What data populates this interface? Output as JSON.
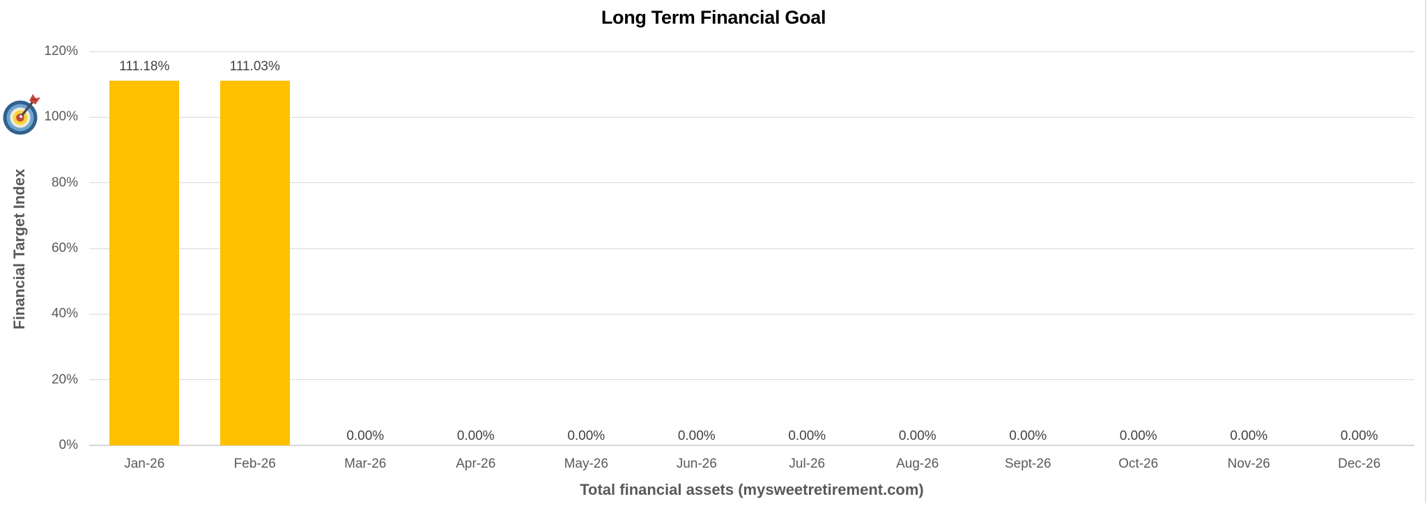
{
  "chart_data": {
    "type": "bar",
    "title": "Long Term Financial Goal",
    "xlabel": "Total financial assets (mysweetretirement.com)",
    "ylabel": "Financial Target Index",
    "categories": [
      "Jan-26",
      "Feb-26",
      "Mar-26",
      "Apr-26",
      "May-26",
      "Jun-26",
      "Jul-26",
      "Aug-26",
      "Sept-26",
      "Oct-26",
      "Nov-26",
      "Dec-26"
    ],
    "values": [
      111.18,
      111.03,
      0,
      0,
      0,
      0,
      0,
      0,
      0,
      0,
      0,
      0
    ],
    "data_labels": [
      "111.18%",
      "111.03%",
      "0.00%",
      "0.00%",
      "0.00%",
      "0.00%",
      "0.00%",
      "0.00%",
      "0.00%",
      "0.00%",
      "0.00%",
      "0.00%"
    ],
    "yticks": [
      {
        "value": 0,
        "label": "0%"
      },
      {
        "value": 20,
        "label": "20%"
      },
      {
        "value": 40,
        "label": "40%"
      },
      {
        "value": 60,
        "label": "60%"
      },
      {
        "value": 80,
        "label": "80%"
      },
      {
        "value": 100,
        "label": "100%"
      },
      {
        "value": 120,
        "label": "120%"
      }
    ],
    "ylim": [
      0,
      120
    ],
    "grid": true,
    "legend_position": "none",
    "icons": {
      "target_marker": "target-icon"
    },
    "colors": {
      "bar": "#FFC000",
      "gridline": "#D9D9D9",
      "axis_line": "#D6D6D6",
      "tick_label": "#595959",
      "data_label": "#404040",
      "title": "#000000",
      "axis_title": "#595959"
    }
  }
}
